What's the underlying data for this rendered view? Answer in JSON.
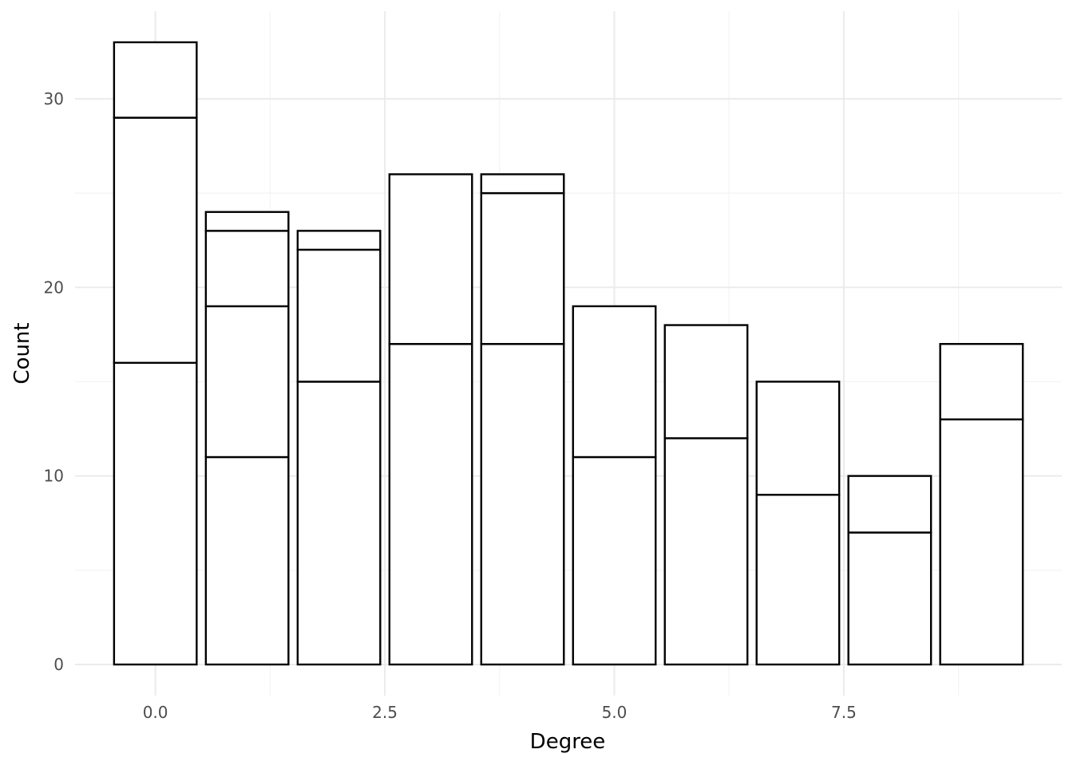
{
  "chart_data": {
    "type": "bar",
    "stacked": true,
    "title": "",
    "xlabel": "Degree",
    "ylabel": "Count",
    "x": [
      0,
      1,
      2,
      3,
      4,
      5,
      6,
      7,
      8,
      9
    ],
    "stack_boundaries": [
      [
        16,
        29,
        33
      ],
      [
        11,
        19,
        23,
        24
      ],
      [
        15,
        22,
        23
      ],
      [
        17,
        26
      ],
      [
        17,
        25,
        26
      ],
      [
        11,
        19
      ],
      [
        12,
        18
      ],
      [
        9,
        15
      ],
      [
        7,
        10
      ],
      [
        13,
        17
      ]
    ],
    "totals": [
      33,
      24,
      23,
      26,
      26,
      19,
      18,
      15,
      10,
      17
    ],
    "xlim": [
      -0.875,
      9.875
    ],
    "ylim": [
      -1.65,
      34.65
    ],
    "x_ticks": [
      0,
      2.5,
      5,
      7.5
    ],
    "x_tick_labels": [
      "0.0",
      "2.5",
      "5.0",
      "7.5"
    ],
    "y_ticks": [
      0,
      10,
      20,
      30
    ],
    "y_tick_labels": [
      "0",
      "10",
      "20",
      "30"
    ],
    "grid": true,
    "bar_fill": "#ffffff",
    "bar_outline": "#000000",
    "grid_color": "#ebebeb",
    "background": "#ffffff"
  }
}
